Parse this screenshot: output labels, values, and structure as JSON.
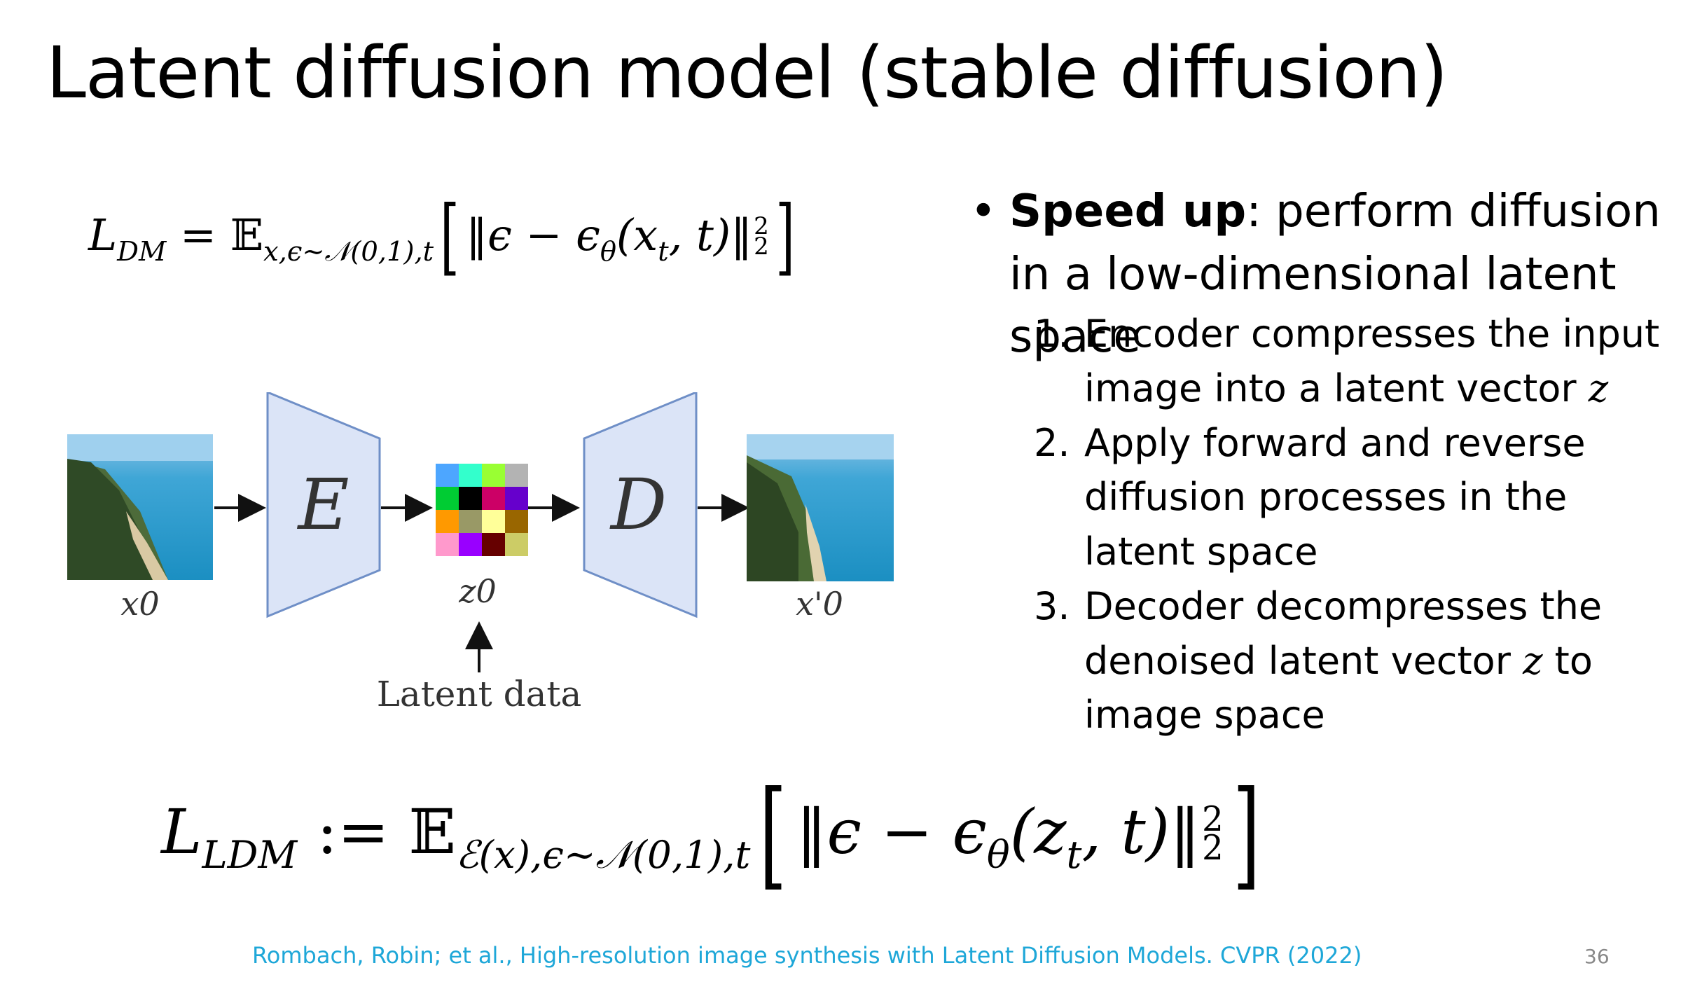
{
  "slide": {
    "title": "Latent diffusion model (stable diffusion)",
    "equation_top": {
      "lhs": "L",
      "lhs_sub": "DM",
      "eq": " = ",
      "expect": "𝔼",
      "expect_sub": "x,ϵ∼𝒩(0,1),t",
      "open_bracket": "[",
      "body": "‖ϵ − ϵ",
      "theta": "θ",
      "args": "(x",
      "args_sub": "t",
      "args_end": ", t)‖",
      "sup": "2",
      "sub": "2",
      "close_bracket": "]"
    },
    "diagram": {
      "input_label": "x0",
      "encoder_label": "E",
      "latent_label": "z0",
      "decoder_label": "D",
      "output_label": "x'0",
      "latent_caption": "Latent data"
    },
    "bullet": {
      "bold": "Speed up",
      "rest": ": perform diffusion in a low-dimensional latent space"
    },
    "steps": [
      {
        "num": "1.",
        "text_before": "Encoder compresses the input image into a latent vector ",
        "var": "z",
        "text_after": ""
      },
      {
        "num": "2.",
        "text_before": "Apply forward and reverse diffusion processes in the latent space",
        "var": "",
        "text_after": ""
      },
      {
        "num": "3.",
        "text_before": "Decoder decompresses the denoised latent vector ",
        "var": "z",
        "text_after": " to image space"
      }
    ],
    "equation_bottom": {
      "lhs": "L",
      "lhs_sub": "LDM",
      "eq": " := ",
      "expect": "𝔼",
      "expect_sub": "ℰ(x),ϵ∼𝒩(0,1),t",
      "open_bracket": "[",
      "body": "‖ϵ − ϵ",
      "theta": "θ",
      "args": "(z",
      "args_sub": "t",
      "args_end": ", t)‖",
      "sup": "2",
      "sub": "2",
      "close_bracket": "]"
    },
    "citation": "Rombach, Robin; et al., High-resolution image synthesis with Latent Diffusion Models. CVPR (2022)",
    "page_number": "36"
  },
  "colors": {
    "block_fill": "#dbe4f7",
    "block_stroke": "#6f8fc7",
    "citation": "#1ea7d8",
    "latent_cells": [
      "#4da6ff",
      "#33ffcc",
      "#99ff33",
      "#b3b3b3",
      "#00cc33",
      "#000000",
      "#cc0066",
      "#6600cc",
      "#ff9900",
      "#999966",
      "#ffff99",
      "#996600",
      "#ff99cc",
      "#9900ff",
      "#660000",
      "#cccc66"
    ]
  }
}
